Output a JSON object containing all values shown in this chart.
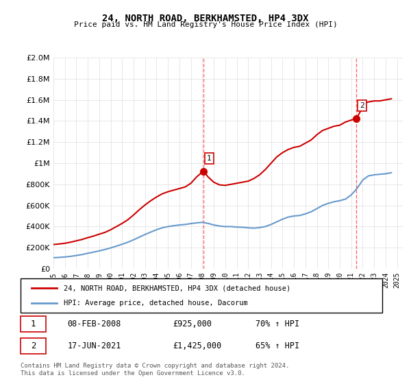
{
  "title": "24, NORTH ROAD, BERKHAMSTED, HP4 3DX",
  "subtitle": "Price paid vs. HM Land Registry's House Price Index (HPI)",
  "legend_line1": "24, NORTH ROAD, BERKHAMSTED, HP4 3DX (detached house)",
  "legend_line2": "HPI: Average price, detached house, Dacorum",
  "sale1_label": "1",
  "sale1_date": "08-FEB-2008",
  "sale1_price": "£925,000",
  "sale1_hpi": "70% ↑ HPI",
  "sale2_label": "2",
  "sale2_date": "17-JUN-2021",
  "sale2_price": "£1,425,000",
  "sale2_hpi": "65% ↑ HPI",
  "footnote": "Contains HM Land Registry data © Crown copyright and database right 2024.\nThis data is licensed under the Open Government Licence v3.0.",
  "line_red_color": "#cc0000",
  "line_blue_color": "#6699cc",
  "marker_color": "#cc0000",
  "vline_color": "#ff6666",
  "ylim": [
    0,
    2000000
  ],
  "xlim_start": 1995.0,
  "xlim_end": 2025.5,
  "sale1_x": 2008.1,
  "sale1_y": 925000,
  "sale2_x": 2021.45,
  "sale2_y": 1425000,
  "red_x": [
    1995,
    1995.5,
    1996,
    1996.5,
    1997,
    1997.5,
    1998,
    1998.5,
    1999,
    1999.5,
    2000,
    2000.5,
    2001,
    2001.5,
    2002,
    2002.5,
    2003,
    2003.5,
    2004,
    2004.5,
    2005,
    2005.5,
    2006,
    2006.5,
    2007,
    2007.5,
    2008.1,
    2008.5,
    2009,
    2009.5,
    2010,
    2010.5,
    2011,
    2011.5,
    2012,
    2012.5,
    2013,
    2013.5,
    2014,
    2014.5,
    2015,
    2015.5,
    2016,
    2016.5,
    2017,
    2017.5,
    2018,
    2018.5,
    2019,
    2019.5,
    2020,
    2020.5,
    2021.45,
    2021.8,
    2022,
    2022.5,
    2023,
    2023.5,
    2024,
    2024.5
  ],
  "red_y": [
    230000,
    235000,
    242000,
    252000,
    265000,
    278000,
    295000,
    310000,
    328000,
    345000,
    370000,
    400000,
    430000,
    465000,
    510000,
    560000,
    605000,
    645000,
    680000,
    710000,
    730000,
    745000,
    760000,
    775000,
    810000,
    870000,
    925000,
    870000,
    820000,
    795000,
    790000,
    800000,
    810000,
    820000,
    830000,
    855000,
    890000,
    940000,
    1000000,
    1060000,
    1100000,
    1130000,
    1150000,
    1160000,
    1190000,
    1220000,
    1270000,
    1310000,
    1330000,
    1350000,
    1360000,
    1390000,
    1425000,
    1490000,
    1560000,
    1580000,
    1590000,
    1590000,
    1600000,
    1610000
  ],
  "blue_x": [
    1995,
    1995.5,
    1996,
    1996.5,
    1997,
    1997.5,
    1998,
    1998.5,
    1999,
    1999.5,
    2000,
    2000.5,
    2001,
    2001.5,
    2002,
    2002.5,
    2003,
    2003.5,
    2004,
    2004.5,
    2005,
    2005.5,
    2006,
    2006.5,
    2007,
    2007.5,
    2008,
    2008.5,
    2009,
    2009.5,
    2010,
    2010.5,
    2011,
    2011.5,
    2012,
    2012.5,
    2013,
    2013.5,
    2014,
    2014.5,
    2015,
    2015.5,
    2016,
    2016.5,
    2017,
    2017.5,
    2018,
    2018.5,
    2019,
    2019.5,
    2020,
    2020.5,
    2021,
    2021.5,
    2022,
    2022.5,
    2023,
    2023.5,
    2024,
    2024.5
  ],
  "blue_y": [
    105000,
    108000,
    112000,
    118000,
    126000,
    135000,
    147000,
    158000,
    170000,
    183000,
    198000,
    215000,
    233000,
    252000,
    275000,
    300000,
    325000,
    348000,
    370000,
    388000,
    400000,
    408000,
    415000,
    420000,
    428000,
    435000,
    440000,
    430000,
    415000,
    405000,
    400000,
    400000,
    395000,
    393000,
    388000,
    385000,
    390000,
    400000,
    420000,
    445000,
    470000,
    490000,
    500000,
    505000,
    520000,
    540000,
    570000,
    600000,
    620000,
    635000,
    645000,
    660000,
    700000,
    760000,
    840000,
    880000,
    890000,
    895000,
    900000,
    910000
  ]
}
